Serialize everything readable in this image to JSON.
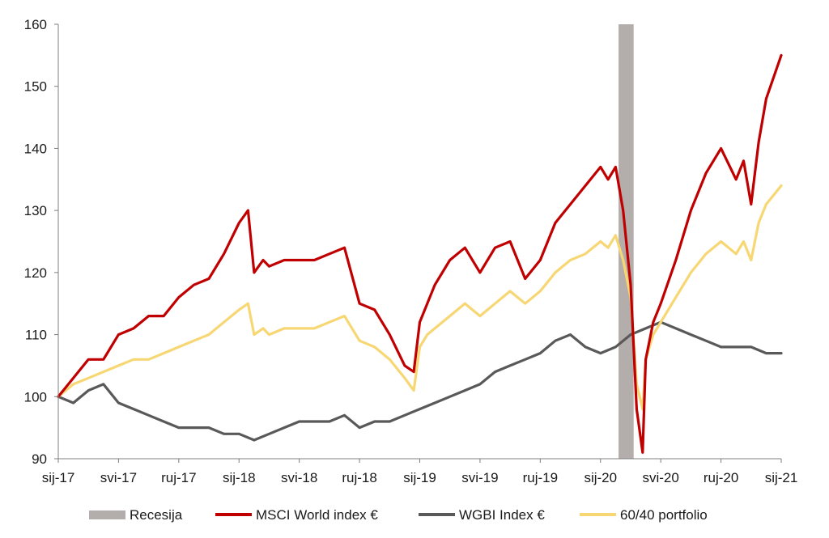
{
  "chart_data": {
    "type": "line",
    "title": "",
    "xlabel": "",
    "ylabel": "",
    "ylim": [
      90,
      160
    ],
    "yticks": [
      90,
      100,
      110,
      120,
      130,
      140,
      150,
      160
    ],
    "xticks": [
      "sij-17",
      "svi-17",
      "ruj-17",
      "sij-18",
      "svi-18",
      "ruj-18",
      "sij-19",
      "svi-19",
      "ruj-19",
      "sij-20",
      "svi-20",
      "ruj-20",
      "sij-21"
    ],
    "x_range_months": [
      0,
      48
    ],
    "grid": false,
    "legend_position": "bottom",
    "recession": {
      "name": "Recesija",
      "x_from": 37.2,
      "x_to": 38.2,
      "color": "#b3adab"
    },
    "series": [
      {
        "name": "MSCI World index €",
        "color": "#c00000",
        "x": [
          0,
          1,
          2,
          3,
          4,
          5,
          6,
          7,
          8,
          9,
          10,
          11,
          12,
          12.6,
          13,
          13.6,
          14,
          15,
          16,
          17,
          18,
          19,
          20,
          21,
          22,
          23,
          23.6,
          24,
          24.5,
          25,
          26,
          27,
          28,
          29,
          30,
          31,
          32,
          33,
          34,
          35,
          36,
          36.5,
          37,
          37.5,
          38,
          38.4,
          38.8,
          39,
          39.5,
          40,
          41,
          42,
          43,
          44,
          45,
          45.5,
          46,
          46.5,
          47,
          48
        ],
        "values": [
          100,
          103,
          106,
          106,
          110,
          111,
          113,
          113,
          116,
          118,
          119,
          123,
          128,
          130,
          120,
          122,
          121,
          122,
          122,
          122,
          123,
          124,
          115,
          114,
          110,
          105,
          104,
          112,
          115,
          118,
          122,
          124,
          120,
          124,
          125,
          119,
          122,
          128,
          131,
          134,
          137,
          135,
          137,
          130,
          118,
          98,
          91,
          106,
          112,
          115,
          122,
          130,
          136,
          140,
          135,
          138,
          131,
          141,
          148,
          155
        ]
      },
      {
        "name": "WGBI Index €",
        "color": "#595959",
        "x": [
          0,
          1,
          2,
          3,
          4,
          5,
          6,
          7,
          8,
          9,
          10,
          11,
          12,
          13,
          14,
          15,
          16,
          17,
          18,
          19,
          20,
          21,
          22,
          23,
          24,
          25,
          26,
          27,
          28,
          29,
          30,
          31,
          32,
          33,
          34,
          35,
          36,
          37,
          38,
          39,
          40,
          41,
          42,
          43,
          44,
          45,
          46,
          47,
          48
        ],
        "values": [
          100,
          99,
          101,
          102,
          99,
          98,
          97,
          96,
          95,
          95,
          95,
          94,
          94,
          93,
          94,
          95,
          96,
          96,
          96,
          97,
          95,
          96,
          96,
          97,
          98,
          99,
          100,
          101,
          102,
          104,
          105,
          106,
          107,
          109,
          110,
          108,
          107,
          108,
          110,
          111,
          112,
          111,
          110,
          109,
          108,
          108,
          108,
          107,
          107
        ]
      },
      {
        "name": "60/40 portfolio",
        "color": "#f7d774",
        "x": [
          0,
          1,
          2,
          3,
          4,
          5,
          6,
          7,
          8,
          9,
          10,
          11,
          12,
          12.6,
          13,
          13.6,
          14,
          15,
          16,
          17,
          18,
          19,
          20,
          21,
          22,
          23,
          23.6,
          24,
          24.5,
          25,
          26,
          27,
          28,
          29,
          30,
          31,
          32,
          33,
          34,
          35,
          36,
          36.5,
          37,
          37.5,
          38,
          38.4,
          38.8,
          39,
          39.5,
          40,
          41,
          42,
          43,
          44,
          45,
          45.5,
          46,
          46.5,
          47,
          48
        ],
        "values": [
          100,
          102,
          103,
          104,
          105,
          106,
          106,
          107,
          108,
          109,
          110,
          112,
          114,
          115,
          110,
          111,
          110,
          111,
          111,
          111,
          112,
          113,
          109,
          108,
          106,
          103,
          101,
          108,
          110,
          111,
          113,
          115,
          113,
          115,
          117,
          115,
          117,
          120,
          122,
          123,
          125,
          124,
          126,
          122,
          116,
          102,
          98,
          106,
          110,
          112,
          116,
          120,
          123,
          125,
          123,
          125,
          122,
          128,
          131,
          134
        ]
      }
    ]
  }
}
